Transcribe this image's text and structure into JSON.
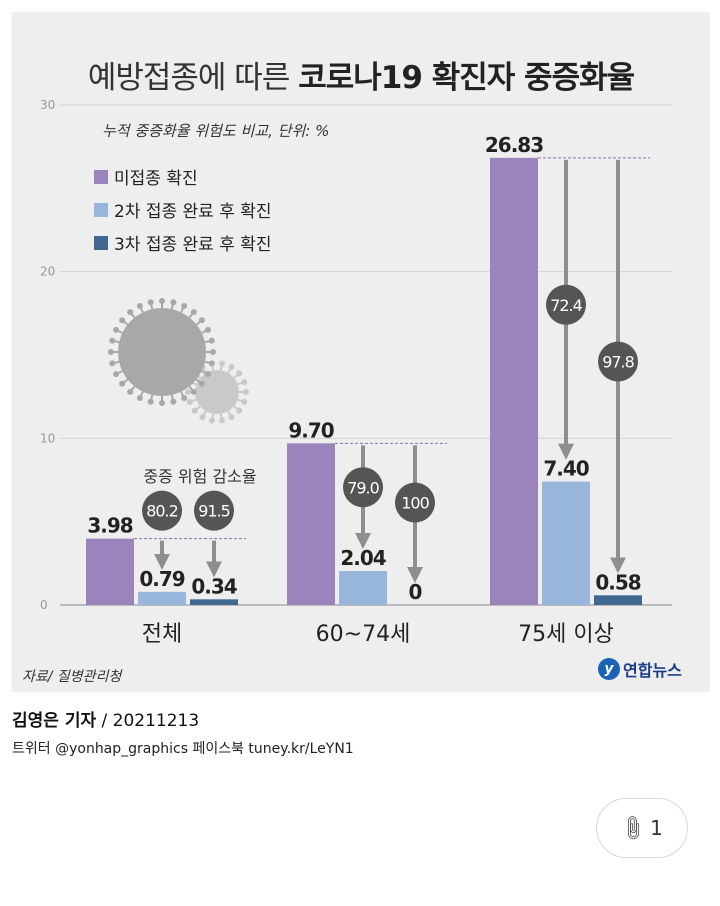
{
  "title": {
    "normal": "예방접종에 따른",
    "bold": "코로나19 확진자 중증화율"
  },
  "subtitle": "누적 중증화율 위험도 비교, 단위: %",
  "legend": [
    {
      "label": "미접종 확진",
      "color": "#9b84bc"
    },
    {
      "label": "2차 접종 완료 후 확진",
      "color": "#98b6d9"
    },
    {
      "label": "3차 접종 완료 후 확진",
      "color": "#3f6790"
    }
  ],
  "reduction_label": "중증 위험 감소율",
  "source": "자료/ 질병관리청",
  "logo": "연합뉴스",
  "chart_data": {
    "type": "bar",
    "title": "예방접종에 따른 코로나19 확진자 중증화율",
    "categories": [
      "전체",
      "60~74세",
      "75세 이상"
    ],
    "series": [
      {
        "name": "미접종 확진",
        "values": [
          3.98,
          9.7,
          26.83
        ],
        "labels": [
          "3.98",
          "9.70",
          "26.83"
        ]
      },
      {
        "name": "2차 접종 완료 후 확진",
        "values": [
          0.79,
          2.04,
          7.4
        ],
        "labels": [
          "0.79",
          "2.04",
          "7.40"
        ]
      },
      {
        "name": "3차 접종 완료 후 확진",
        "values": [
          0.34,
          0,
          0.58
        ],
        "labels": [
          "0.34",
          "0",
          "0.58"
        ]
      }
    ],
    "reduction": [
      [
        "80.2",
        "91.5"
      ],
      [
        "79.0",
        "100"
      ],
      [
        "72.4",
        "97.8"
      ]
    ],
    "ylim": [
      0,
      30
    ],
    "yticks": [
      "0",
      "10",
      "20",
      "30"
    ],
    "grid": true
  },
  "caption": {
    "author": "김영은 기자",
    "date": " / 20211213",
    "links": "트위터 @yonhap_graphics  페이스북 tuney.kr/LeYN1"
  },
  "attachment": {
    "count": "1",
    "icon": "paperclip-icon"
  }
}
